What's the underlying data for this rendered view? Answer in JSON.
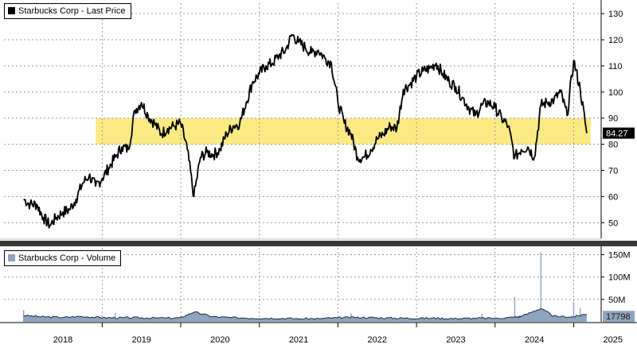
{
  "colors": {
    "price_line": "#000000",
    "band_fill": "#FBEA84",
    "volume_fill": "#8EA4BF",
    "volume_line": "#1F2A44",
    "grid": "#9a9a9a"
  },
  "chart_data": [
    {
      "type": "line",
      "legend": "Starbucks Corp - Last Price",
      "legend_placement": "top-left",
      "last_value_label": "84.27",
      "grid": true,
      "ylim": [
        44,
        134
      ],
      "y_ticks": [
        50,
        60,
        70,
        80,
        90,
        100,
        110,
        120,
        130
      ],
      "highlight_band": [
        80,
        90
      ],
      "band_x_range": [
        "2018-12",
        "2025-03"
      ],
      "series": [
        {
          "x": [
            "2018-01",
            "2018-02",
            "2018-03",
            "2018-04",
            "2018-05",
            "2018-06",
            "2018-07",
            "2018-08",
            "2018-09",
            "2018-10",
            "2018-11",
            "2018-12",
            "2019-01",
            "2019-02",
            "2019-03",
            "2019-04",
            "2019-05",
            "2019-06",
            "2019-07",
            "2019-08",
            "2019-09",
            "2019-10",
            "2019-11",
            "2019-12",
            "2020-01",
            "2020-02",
            "2020-03",
            "2020-04",
            "2020-05",
            "2020-06",
            "2020-07",
            "2020-08",
            "2020-09",
            "2020-10",
            "2020-11",
            "2020-12",
            "2021-01",
            "2021-02",
            "2021-03",
            "2021-04",
            "2021-05",
            "2021-06",
            "2021-07",
            "2021-08",
            "2021-09",
            "2021-10",
            "2021-11",
            "2021-12",
            "2022-01",
            "2022-02",
            "2022-03",
            "2022-04",
            "2022-05",
            "2022-06",
            "2022-07",
            "2022-08",
            "2022-09",
            "2022-10",
            "2022-11",
            "2022-12",
            "2023-01",
            "2023-02",
            "2023-03",
            "2023-04",
            "2023-05",
            "2023-06",
            "2023-07",
            "2023-08",
            "2023-09",
            "2023-10",
            "2023-11",
            "2023-12",
            "2024-01",
            "2024-02",
            "2024-03",
            "2024-04",
            "2024-05",
            "2024-06",
            "2024-07",
            "2024-08",
            "2024-09",
            "2024-10",
            "2024-11",
            "2024-12",
            "2025-01",
            "2025-02",
            "2025-03"
          ],
          "values": [
            59,
            57,
            57,
            52,
            49,
            52,
            54,
            55,
            59,
            65,
            68,
            64,
            67,
            71,
            75,
            79,
            78,
            93,
            96,
            91,
            88,
            84,
            86,
            87,
            88,
            78,
            60,
            75,
            77,
            76,
            78,
            84,
            87,
            88,
            96,
            104,
            107,
            110,
            111,
            114,
            116,
            122,
            119,
            117,
            115,
            116,
            113,
            111,
            96,
            88,
            84,
            75,
            75,
            78,
            82,
            84,
            87,
            86,
            101,
            103,
            106,
            108,
            109,
            111,
            107,
            104,
            102,
            98,
            94,
            91,
            95,
            96,
            94,
            90,
            87,
            75,
            78,
            79,
            75,
            95,
            96,
            97,
            100,
            91,
            112,
            101,
            84.27
          ]
        }
      ],
      "x_tick_labels": [
        "2018",
        "2019",
        "2020",
        "2021",
        "2022",
        "2023",
        "2024",
        "2025"
      ]
    },
    {
      "type": "area",
      "legend": "Starbucks Corp - Volume",
      "legend_placement": "top-left",
      "last_value_label": "17798",
      "ylim": [
        0,
        165
      ],
      "y_ticks": [
        50,
        100,
        150
      ],
      "y_tick_labels": [
        "50M",
        "100M",
        "150M"
      ],
      "grid": true,
      "series": [
        {
          "x": [
            "2018-01",
            "2018-04",
            "2018-07",
            "2018-10",
            "2019-01",
            "2019-04",
            "2019-07",
            "2019-10",
            "2020-01",
            "2020-03",
            "2020-06",
            "2020-09",
            "2021-01",
            "2021-04",
            "2021-07",
            "2021-10",
            "2022-01",
            "2022-04",
            "2022-07",
            "2022-10",
            "2023-01",
            "2023-04",
            "2023-07",
            "2023-10",
            "2024-01",
            "2024-04",
            "2024-05",
            "2024-08",
            "2024-10",
            "2025-01",
            "2025-03"
          ],
          "values": [
            14,
            11,
            10,
            12,
            9,
            9,
            9,
            8,
            9,
            22,
            11,
            9,
            8,
            8,
            7,
            7,
            9,
            10,
            9,
            8,
            8,
            8,
            7,
            8,
            8,
            10,
            12,
            30,
            12,
            11,
            18
          ]
        }
      ],
      "spikes": [
        {
          "x": "2018-01",
          "value": 26
        },
        {
          "x": "2019-03",
          "value": 20
        },
        {
          "x": "2022-03",
          "value": 19
        },
        {
          "x": "2023-11",
          "value": 18
        },
        {
          "x": "2024-04",
          "value": 55
        },
        {
          "x": "2024-08",
          "value": 155
        },
        {
          "x": "2025-01",
          "value": 44
        },
        {
          "x": "2025-02",
          "value": 30
        }
      ]
    }
  ]
}
